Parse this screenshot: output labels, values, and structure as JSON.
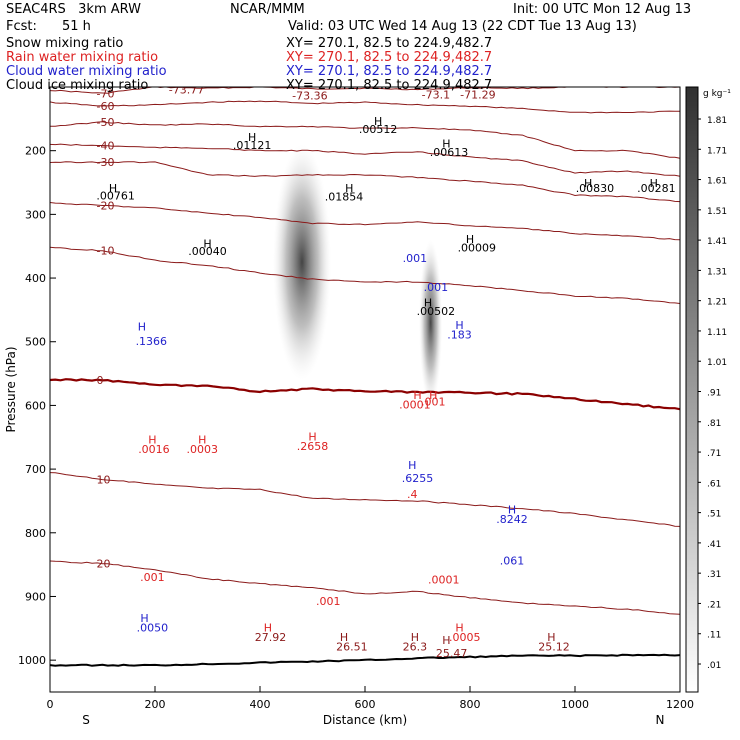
{
  "header": {
    "model": "SEAC4RS   3km ARW",
    "org": "NCAR/MMM",
    "init": "Init: 00 UTC Mon 12 Aug 13",
    "fcst_label": "Fcst:",
    "fcst_value": "51 h",
    "valid": "Valid: 03 UTC Wed 14 Aug 13 (22 CDT Tue 13 Aug 13)",
    "fields": [
      {
        "name": "Snow mixing ratio",
        "color": "#000000",
        "xy": "XY= 270.1, 82.5 to 224.9,482.7"
      },
      {
        "name": "Rain water mixing ratio",
        "color": "#dd2222",
        "xy": "XY= 270.1, 82.5 to 224.9,482.7"
      },
      {
        "name": "Cloud water mixing ratio",
        "color": "#2222cc",
        "xy": "XY= 270.1, 82.5 to 224.9,482.7"
      },
      {
        "name": "Cloud ice mixing ratio",
        "color": "#000000",
        "xy": "XY= 270.1, 82.5 to 224.9,482.7"
      }
    ]
  },
  "chart_data": {
    "type": "contour-cross-section",
    "xlabel": "Distance (km)",
    "ylabel": "Pressure (hPa)",
    "xlim": [
      0,
      1200
    ],
    "ylim": [
      100,
      1050
    ],
    "y_reversed": true,
    "x_ticks": [
      0,
      200,
      400,
      600,
      800,
      1000,
      1200
    ],
    "y_ticks": [
      200,
      300,
      400,
      500,
      600,
      700,
      800,
      900,
      1000
    ],
    "x_end_labels": {
      "left": "S",
      "right": "N"
    },
    "colorbar": {
      "unit": "g kg⁻¹",
      "levels": [
        "1.81",
        "1.71",
        "1.61",
        "1.51",
        "1.41",
        "1.31",
        "1.21",
        "1.11",
        "1.01",
        ".91",
        ".81",
        ".71",
        ".61",
        ".51",
        ".41",
        ".31",
        ".21",
        ".11",
        ".01"
      ]
    },
    "temperature_contours": {
      "color": "#8b1a1a",
      "zero_color": "#8b0000",
      "lines": [
        {
          "t": -70,
          "p": [
            [
              0,
              105
            ],
            [
              100,
              110
            ],
            [
              200,
              100
            ],
            [
              300,
              102
            ],
            [
              400,
              100
            ],
            [
              500,
              103
            ],
            [
              600,
              102
            ],
            [
              700,
              104
            ],
            [
              800,
              101
            ],
            [
              900,
              102
            ],
            [
              1000,
              100
            ],
            [
              1100,
              100
            ],
            [
              1200,
              100
            ]
          ]
        },
        {
          "t": -60,
          "p": [
            [
              0,
              124
            ],
            [
              100,
              130
            ],
            [
              200,
              128
            ],
            [
              300,
              124
            ],
            [
              400,
              122
            ],
            [
              500,
              126
            ],
            [
              600,
              124
            ],
            [
              700,
              128
            ],
            [
              800,
              130
            ],
            [
              900,
              134
            ],
            [
              1000,
              140
            ],
            [
              1100,
              140
            ],
            [
              1200,
              138
            ]
          ]
        },
        {
          "t": -50,
          "p": [
            [
              0,
              162
            ],
            [
              100,
              155
            ],
            [
              200,
              160
            ],
            [
              300,
              158
            ],
            [
              400,
              162
            ],
            [
              500,
              162
            ],
            [
              600,
              165
            ],
            [
              700,
              164
            ],
            [
              800,
              168
            ],
            [
              900,
              176
            ],
            [
              1000,
              200
            ],
            [
              1100,
              200
            ],
            [
              1200,
              212
            ]
          ]
        },
        {
          "t": -40,
          "p": [
            [
              0,
              190
            ],
            [
              100,
              192
            ],
            [
              200,
              195
            ],
            [
              300,
              196
            ],
            [
              400,
              200
            ],
            [
              500,
              200
            ],
            [
              600,
              205
            ],
            [
              700,
              202
            ],
            [
              800,
              210
            ],
            [
              900,
              216
            ],
            [
              1000,
              235
            ],
            [
              1100,
              232
            ],
            [
              1200,
              240
            ]
          ]
        },
        {
          "t": -30,
          "p": [
            [
              0,
              218
            ],
            [
              100,
              218
            ],
            [
              200,
              218
            ],
            [
              300,
              238
            ],
            [
              400,
              240
            ],
            [
              500,
              238
            ],
            [
              600,
              238
            ],
            [
              700,
              242
            ],
            [
              800,
              248
            ],
            [
              900,
              254
            ],
            [
              1000,
              270
            ],
            [
              1100,
              272
            ],
            [
              1200,
              280
            ]
          ]
        },
        {
          "t": -20,
          "p": [
            [
              0,
              282
            ],
            [
              100,
              286
            ],
            [
              200,
              290
            ],
            [
              300,
              298
            ],
            [
              400,
              305
            ],
            [
              500,
              314
            ],
            [
              600,
              316
            ],
            [
              700,
              312
            ],
            [
              800,
              318
            ],
            [
              900,
              322
            ],
            [
              1000,
              330
            ],
            [
              1100,
              334
            ],
            [
              1200,
              340
            ]
          ]
        },
        {
          "t": -10,
          "p": [
            [
              0,
              352
            ],
            [
              100,
              357
            ],
            [
              200,
              372
            ],
            [
              300,
              380
            ],
            [
              400,
              392
            ],
            [
              500,
              402
            ],
            [
              600,
              406
            ],
            [
              700,
              406
            ],
            [
              800,
              412
            ],
            [
              900,
              420
            ],
            [
              1000,
              428
            ],
            [
              1100,
              432
            ],
            [
              1200,
              440
            ]
          ]
        },
        {
          "t": 0,
          "p": [
            [
              0,
              560
            ],
            [
              100,
              560
            ],
            [
              200,
              568
            ],
            [
              300,
              570
            ],
            [
              400,
              578
            ],
            [
              500,
              574
            ],
            [
              600,
              578
            ],
            [
              700,
              579
            ],
            [
              800,
              580
            ],
            [
              900,
              582
            ],
            [
              1000,
              590
            ],
            [
              1100,
              598
            ],
            [
              1200,
              606
            ]
          ]
        },
        {
          "t": 10,
          "p": [
            [
              0,
              705
            ],
            [
              100,
              716
            ],
            [
              200,
              724
            ],
            [
              300,
              730
            ],
            [
              400,
              732
            ],
            [
              500,
              746
            ],
            [
              600,
              748
            ],
            [
              700,
              750
            ],
            [
              800,
              756
            ],
            [
              900,
              762
            ],
            [
              1000,
              770
            ],
            [
              1100,
              780
            ],
            [
              1200,
              790
            ]
          ]
        },
        {
          "t": 20,
          "p": [
            [
              0,
              845
            ],
            [
              100,
              848
            ],
            [
              200,
              858
            ],
            [
              300,
              872
            ],
            [
              400,
              880
            ],
            [
              500,
              886
            ],
            [
              600,
              896
            ],
            [
              700,
              892
            ],
            [
              800,
              902
            ],
            [
              900,
              910
            ],
            [
              1000,
              915
            ],
            [
              1100,
              920
            ],
            [
              1200,
              928
            ]
          ]
        }
      ]
    },
    "surface_pressure": {
      "color": "#000000",
      "p": [
        [
          0,
          1008
        ],
        [
          100,
          1008
        ],
        [
          200,
          1008
        ],
        [
          300,
          1006
        ],
        [
          400,
          1004
        ],
        [
          500,
          1002
        ],
        [
          600,
          1000
        ],
        [
          700,
          997
        ],
        [
          800,
          995
        ],
        [
          900,
          993
        ],
        [
          1000,
          993
        ],
        [
          1100,
          992
        ],
        [
          1200,
          992
        ]
      ]
    },
    "shaded_plumes": [
      {
        "x": 480,
        "p_top": 190,
        "p_bot": 560,
        "half_width": 55
      },
      {
        "x": 725,
        "p_top": 340,
        "p_bot": 600,
        "half_width": 22
      }
    ],
    "max_labels": [
      {
        "x": 260,
        "p": 110,
        "text": "-73.77",
        "color": "#8b1a1a"
      },
      {
        "x": 495,
        "p": 120,
        "text": "-73.36",
        "color": "#8b1a1a"
      },
      {
        "x": 735,
        "p": 118,
        "text": "-73.1",
        "color": "#8b1a1a"
      },
      {
        "x": 815,
        "p": 118,
        "text": "-71.29",
        "color": "#8b1a1a"
      },
      {
        "x": 385,
        "p": 185,
        "text": "H",
        "color": "#000000"
      },
      {
        "x": 385,
        "p": 197,
        "text": ".01121",
        "color": "#000000"
      },
      {
        "x": 625,
        "p": 160,
        "text": "H",
        "color": "#000000"
      },
      {
        "x": 625,
        "p": 172,
        "text": ".00512",
        "color": "#000000"
      },
      {
        "x": 755,
        "p": 195,
        "text": "H",
        "color": "#000000"
      },
      {
        "x": 760,
        "p": 208,
        "text": ".00613",
        "color": "#000000"
      },
      {
        "x": 120,
        "p": 265,
        "text": "H",
        "color": "#000000"
      },
      {
        "x": 125,
        "p": 277,
        "text": ".00761",
        "color": "#000000"
      },
      {
        "x": 570,
        "p": 265,
        "text": "H",
        "color": "#000000"
      },
      {
        "x": 560,
        "p": 278,
        "text": ".01854",
        "color": "#000000"
      },
      {
        "x": 1025,
        "p": 257,
        "text": "H",
        "color": "#000000"
      },
      {
        "x": 1038,
        "p": 265,
        "text": ".00830",
        "color": "#000000"
      },
      {
        "x": 1150,
        "p": 257,
        "text": "H",
        "color": "#000000"
      },
      {
        "x": 1155,
        "p": 265,
        "text": ".00281",
        "color": "#000000"
      },
      {
        "x": 300,
        "p": 352,
        "text": "H",
        "color": "#000000"
      },
      {
        "x": 300,
        "p": 364,
        "text": ".00040",
        "color": "#000000"
      },
      {
        "x": 800,
        "p": 345,
        "text": "H",
        "color": "#000000"
      },
      {
        "x": 813,
        "p": 358,
        "text": ".00009",
        "color": "#000000"
      },
      {
        "x": 720,
        "p": 445,
        "text": "H",
        "color": "#000000"
      },
      {
        "x": 735,
        "p": 458,
        "text": ".00502",
        "color": "#000000"
      },
      {
        "x": 695,
        "p": 375,
        "text": ".001",
        "color": "#2222cc"
      },
      {
        "x": 735,
        "p": 420,
        "text": ".001",
        "color": "#2222cc"
      },
      {
        "x": 780,
        "p": 480,
        "text": "H",
        "color": "#2222cc"
      },
      {
        "x": 780,
        "p": 495,
        "text": ".183",
        "color": "#2222cc"
      },
      {
        "x": 175,
        "p": 482,
        "text": "H",
        "color": "#2222cc"
      },
      {
        "x": 193,
        "p": 505,
        "text": ".1366",
        "color": "#2222cc"
      },
      {
        "x": 700,
        "p": 590,
        "text": "H",
        "color": "#dd2222"
      },
      {
        "x": 730,
        "p": 590,
        "text": "H",
        "color": "#dd2222"
      },
      {
        "x": 695,
        "p": 605,
        "text": ".0001",
        "color": "#dd2222"
      },
      {
        "x": 730,
        "p": 600,
        "text": ".001",
        "color": "#dd2222"
      },
      {
        "x": 195,
        "p": 660,
        "text": "H",
        "color": "#dd2222"
      },
      {
        "x": 198,
        "p": 675,
        "text": ".0016",
        "color": "#dd2222"
      },
      {
        "x": 290,
        "p": 660,
        "text": "H",
        "color": "#dd2222"
      },
      {
        "x": 290,
        "p": 675,
        "text": ".0003",
        "color": "#dd2222"
      },
      {
        "x": 500,
        "p": 655,
        "text": "H",
        "color": "#dd2222"
      },
      {
        "x": 500,
        "p": 670,
        "text": ".2658",
        "color": "#dd2222"
      },
      {
        "x": 690,
        "p": 700,
        "text": "H",
        "color": "#2222cc"
      },
      {
        "x": 700,
        "p": 720,
        "text": ".6255",
        "color": "#2222cc"
      },
      {
        "x": 690,
        "p": 745,
        "text": ".4",
        "color": "#dd2222"
      },
      {
        "x": 880,
        "p": 770,
        "text": "H",
        "color": "#2222cc"
      },
      {
        "x": 880,
        "p": 785,
        "text": ".8242",
        "color": "#2222cc"
      },
      {
        "x": 880,
        "p": 850,
        "text": ".061",
        "color": "#2222cc"
      },
      {
        "x": 195,
        "p": 876,
        "text": ".001",
        "color": "#dd2222"
      },
      {
        "x": 750,
        "p": 880,
        "text": ".0001",
        "color": "#dd2222"
      },
      {
        "x": 530,
        "p": 913,
        "text": ".001",
        "color": "#dd2222"
      },
      {
        "x": 180,
        "p": 940,
        "text": "H",
        "color": "#2222cc"
      },
      {
        "x": 195,
        "p": 955,
        "text": ".0050",
        "color": "#2222cc"
      },
      {
        "x": 415,
        "p": 955,
        "text": "H",
        "color": "#dd2222"
      },
      {
        "x": 420,
        "p": 970,
        "text": "27.92",
        "color": "#8b1a1a"
      },
      {
        "x": 560,
        "p": 970,
        "text": "H",
        "color": "#8b1a1a"
      },
      {
        "x": 575,
        "p": 985,
        "text": "26.51",
        "color": "#8b1a1a"
      },
      {
        "x": 695,
        "p": 970,
        "text": "H",
        "color": "#8b1a1a"
      },
      {
        "x": 695,
        "p": 985,
        "text": "26.3",
        "color": "#8b1a1a"
      },
      {
        "x": 755,
        "p": 975,
        "text": "H",
        "color": "#8b1a1a"
      },
      {
        "x": 780,
        "p": 955,
        "text": "H",
        "color": "#dd2222"
      },
      {
        "x": 790,
        "p": 970,
        "text": ".0005",
        "color": "#dd2222"
      },
      {
        "x": 765,
        "p": 995,
        "text": "25.47",
        "color": "#8b1a1a"
      },
      {
        "x": 955,
        "p": 970,
        "text": "H",
        "color": "#8b1a1a"
      },
      {
        "x": 960,
        "p": 985,
        "text": "25.12",
        "color": "#8b1a1a"
      }
    ]
  }
}
